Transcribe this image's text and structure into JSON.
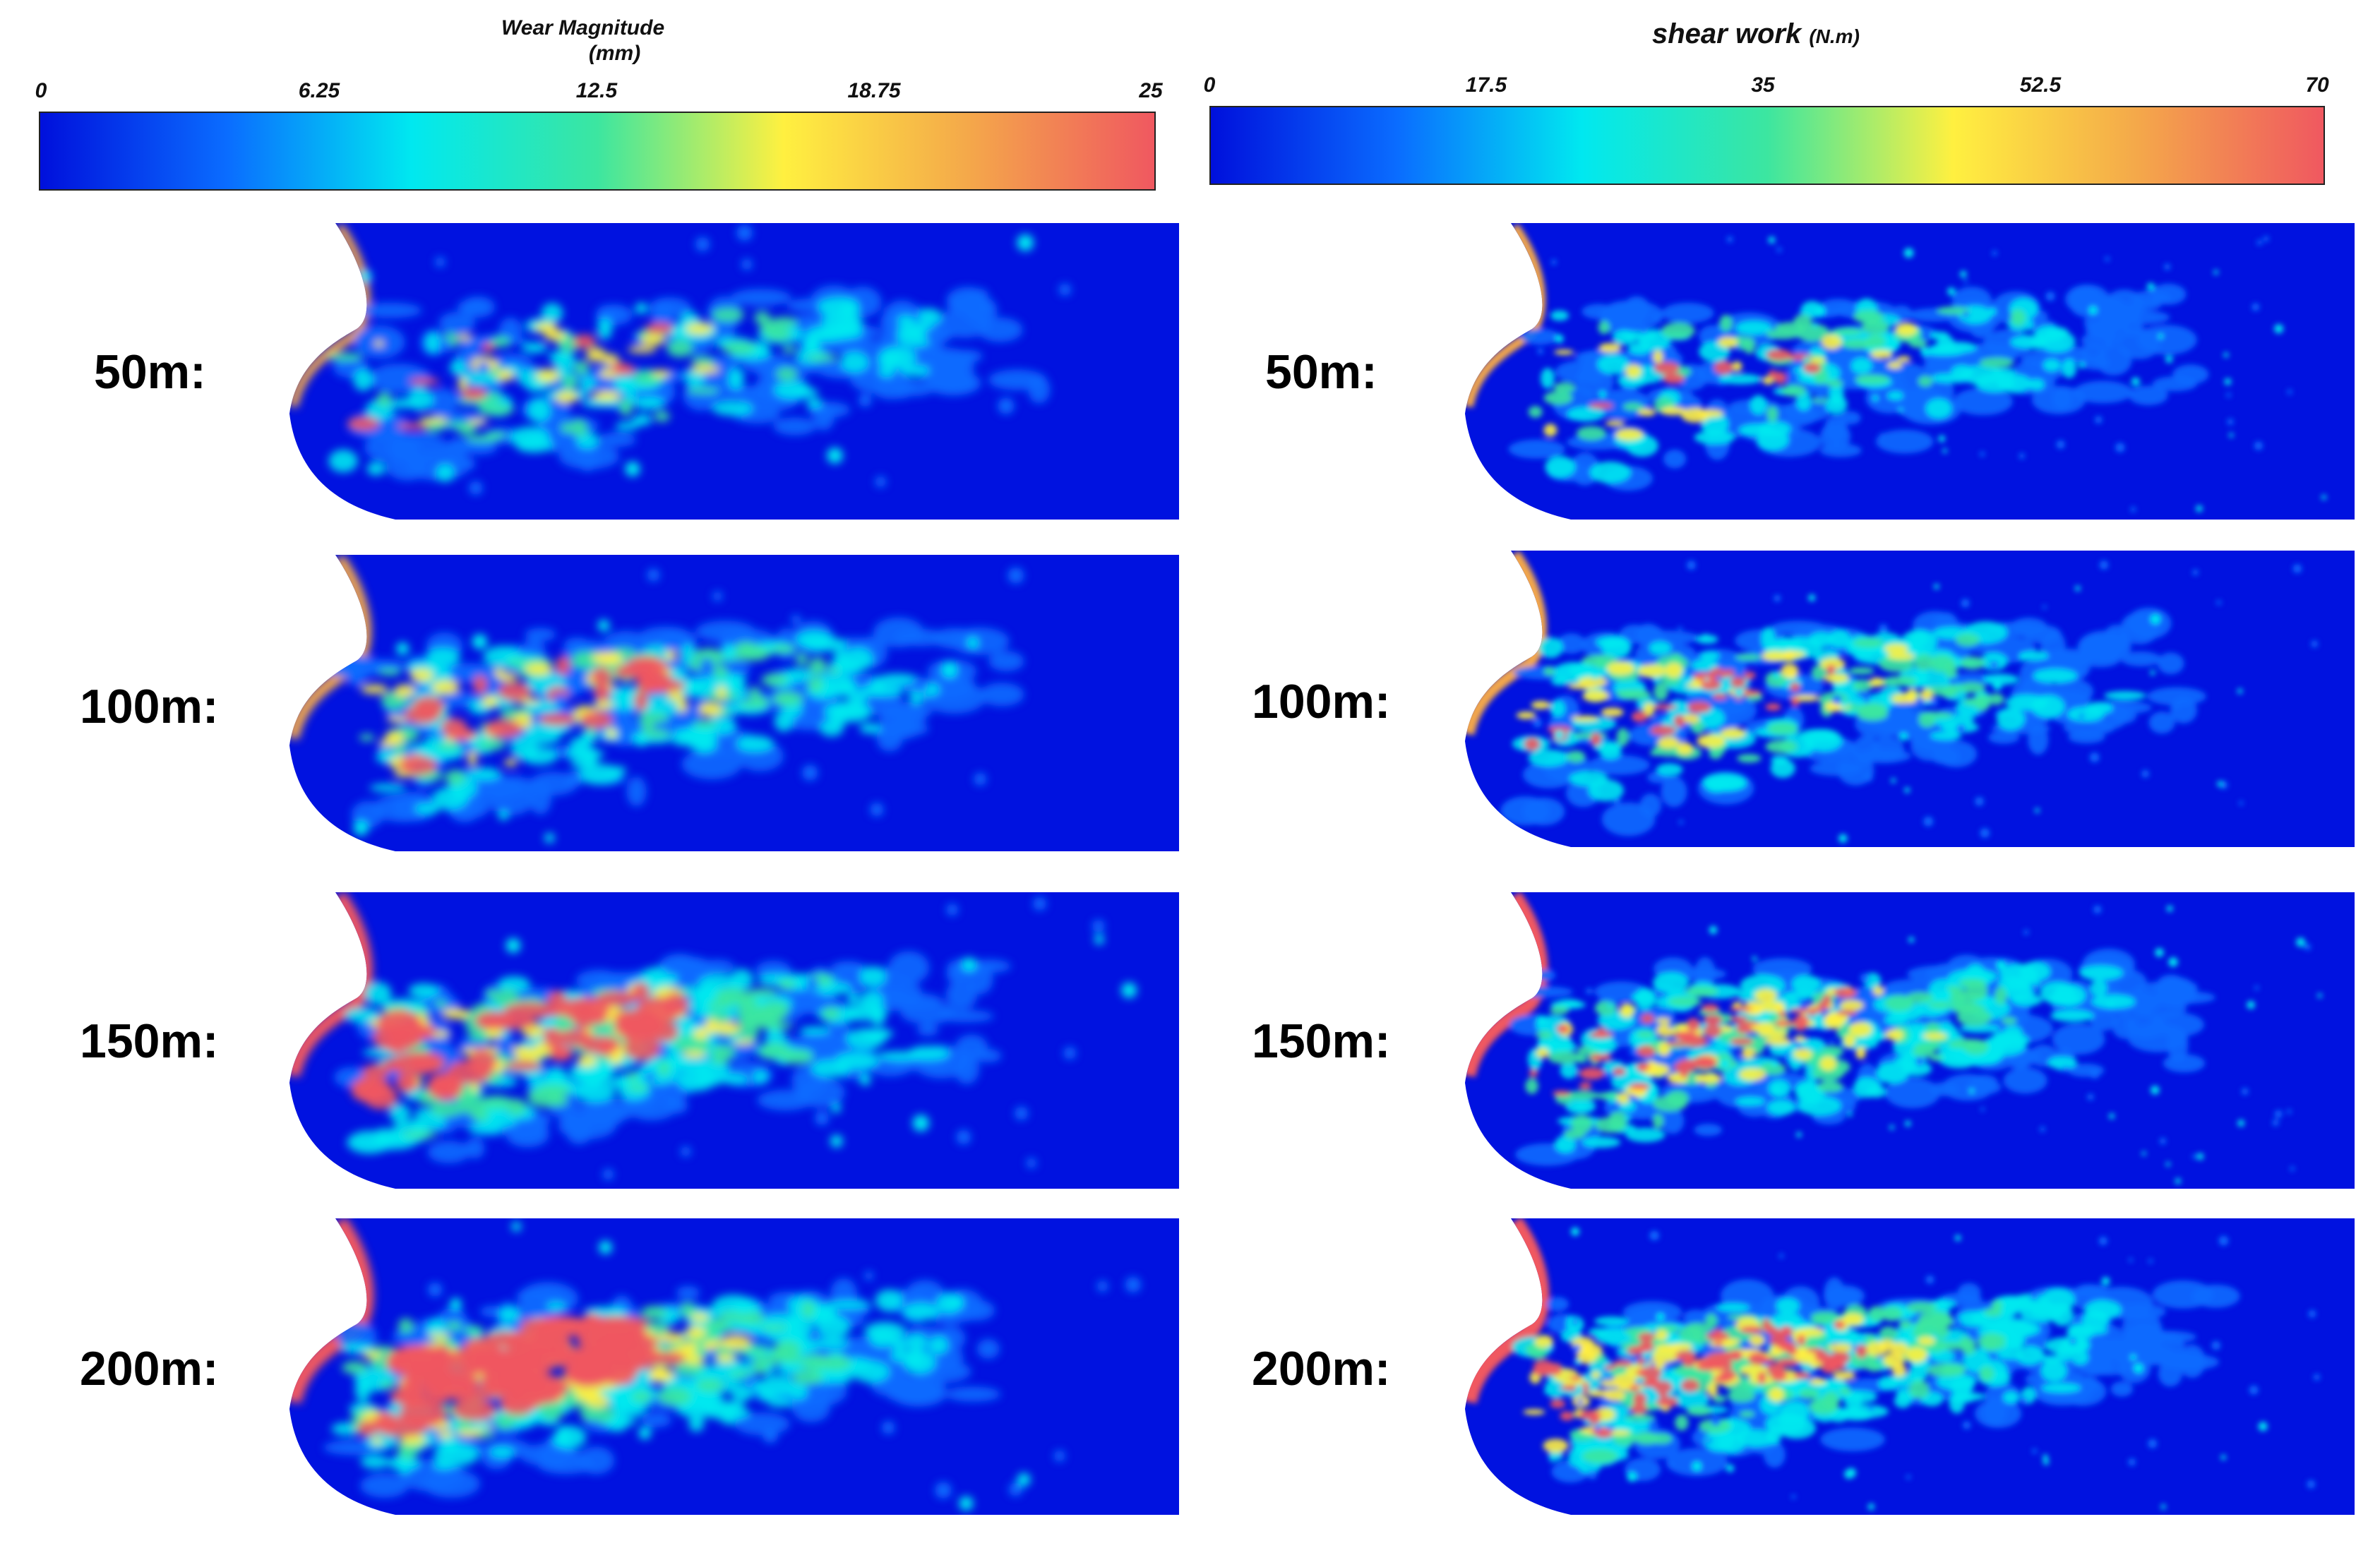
{
  "left_scale": {
    "title": "Wear Magnitude",
    "unit": "(mm)",
    "ticks": [
      "0",
      "6.25",
      "12.5",
      "18.75",
      "25"
    ],
    "min": 0,
    "max": 25
  },
  "right_scale": {
    "title": "shear work",
    "unit": "(N.m)",
    "ticks": [
      "0",
      "17.5",
      "35",
      "52.5",
      "70"
    ],
    "min": 0,
    "max": 70
  },
  "colormap": [
    "#0010dc",
    "#0a6cff",
    "#00e8f0",
    "#3ce6a0",
    "#fff040",
    "#f4a84a",
    "#f05860"
  ],
  "rows": [
    {
      "label": "50m:",
      "distance_m": 50,
      "wear_intensity": 0.25,
      "shear_intensity": 0.25
    },
    {
      "label": "100m:",
      "distance_m": 100,
      "wear_intensity": 0.5,
      "shear_intensity": 0.5
    },
    {
      "label": "150m:",
      "distance_m": 150,
      "wear_intensity": 0.75,
      "shear_intensity": 0.75
    },
    {
      "label": "200m:",
      "distance_m": 200,
      "wear_intensity": 1.0,
      "shear_intensity": 1.0
    }
  ]
}
